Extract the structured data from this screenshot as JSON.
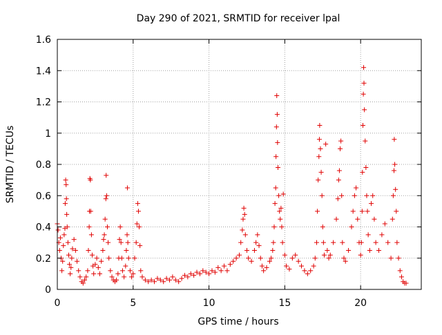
{
  "chart_data": {
    "type": "scatter",
    "title": "Day 290 of 2021, SRMTID for receiver lpal",
    "xlabel": "GPS time / hours",
    "ylabel": "SRMTID / TECUs",
    "xlim": [
      0,
      24
    ],
    "ylim": [
      0,
      1.6
    ],
    "x_ticks": [
      0,
      5,
      10,
      15,
      20
    ],
    "x_tick_labels": [
      "0",
      "5",
      "10",
      "15",
      "20"
    ],
    "y_ticks": [
      0,
      0.2,
      0.4,
      0.6,
      0.8,
      1.0,
      1.2,
      1.4,
      1.6
    ],
    "y_tick_labels": [
      "0",
      "0.2",
      "0.4",
      "0.6",
      "0.8",
      "1",
      "1.2",
      "1.4",
      "1.6"
    ],
    "grid": true,
    "marker": "+",
    "series": [
      {
        "name": "SRMTID",
        "color": "#e00000",
        "points": [
          [
            0.0,
            0.42
          ],
          [
            0.05,
            0.38
          ],
          [
            0.1,
            0.3
          ],
          [
            0.15,
            0.25
          ],
          [
            0.2,
            0.33
          ],
          [
            0.25,
            0.2
          ],
          [
            0.3,
            0.12
          ],
          [
            0.35,
            0.18
          ],
          [
            0.4,
            0.28
          ],
          [
            0.45,
            0.35
          ],
          [
            0.5,
            0.39
          ],
          [
            0.52,
            0.55
          ],
          [
            0.55,
            0.7
          ],
          [
            0.58,
            0.67
          ],
          [
            0.6,
            0.58
          ],
          [
            0.62,
            0.48
          ],
          [
            0.65,
            0.4
          ],
          [
            0.7,
            0.3
          ],
          [
            0.75,
            0.22
          ],
          [
            0.8,
            0.16
          ],
          [
            0.85,
            0.1
          ],
          [
            0.9,
            0.14
          ],
          [
            0.95,
            0.2
          ],
          [
            1.0,
            0.26
          ],
          [
            1.1,
            0.32
          ],
          [
            1.2,
            0.25
          ],
          [
            1.3,
            0.18
          ],
          [
            1.4,
            0.12
          ],
          [
            1.5,
            0.08
          ],
          [
            1.6,
            0.05
          ],
          [
            1.7,
            0.04
          ],
          [
            1.8,
            0.06
          ],
          [
            1.9,
            0.08
          ],
          [
            2.0,
            0.12
          ],
          [
            2.05,
            0.25
          ],
          [
            2.1,
            0.4
          ],
          [
            2.12,
            0.5
          ],
          [
            2.15,
            0.71
          ],
          [
            2.18,
            0.7
          ],
          [
            2.2,
            0.5
          ],
          [
            2.25,
            0.35
          ],
          [
            2.3,
            0.22
          ],
          [
            2.35,
            0.15
          ],
          [
            2.4,
            0.1
          ],
          [
            2.5,
            0.16
          ],
          [
            2.6,
            0.2
          ],
          [
            2.7,
            0.14
          ],
          [
            2.8,
            0.1
          ],
          [
            2.9,
            0.18
          ],
          [
            3.0,
            0.25
          ],
          [
            3.05,
            0.32
          ],
          [
            3.1,
            0.35
          ],
          [
            3.15,
            0.45
          ],
          [
            3.2,
            0.58
          ],
          [
            3.22,
            0.73
          ],
          [
            3.25,
            0.6
          ],
          [
            3.3,
            0.4
          ],
          [
            3.35,
            0.3
          ],
          [
            3.4,
            0.2
          ],
          [
            3.5,
            0.12
          ],
          [
            3.6,
            0.08
          ],
          [
            3.7,
            0.06
          ],
          [
            3.8,
            0.05
          ],
          [
            3.9,
            0.06
          ],
          [
            4.0,
            0.1
          ],
          [
            4.05,
            0.2
          ],
          [
            4.1,
            0.32
          ],
          [
            4.15,
            0.4
          ],
          [
            4.2,
            0.3
          ],
          [
            4.25,
            0.2
          ],
          [
            4.3,
            0.12
          ],
          [
            4.4,
            0.08
          ],
          [
            4.5,
            0.15
          ],
          [
            4.55,
            0.25
          ],
          [
            4.6,
            0.35
          ],
          [
            4.62,
            0.65
          ],
          [
            4.65,
            0.3
          ],
          [
            4.7,
            0.2
          ],
          [
            4.8,
            0.12
          ],
          [
            4.9,
            0.08
          ],
          [
            5.0,
            0.1
          ],
          [
            5.1,
            0.2
          ],
          [
            5.2,
            0.3
          ],
          [
            5.25,
            0.42
          ],
          [
            5.3,
            0.55
          ],
          [
            5.35,
            0.5
          ],
          [
            5.4,
            0.4
          ],
          [
            5.45,
            0.28
          ],
          [
            5.5,
            0.12
          ],
          [
            5.6,
            0.08
          ],
          [
            5.8,
            0.06
          ],
          [
            6.0,
            0.05
          ],
          [
            6.2,
            0.06
          ],
          [
            6.4,
            0.05
          ],
          [
            6.6,
            0.07
          ],
          [
            6.8,
            0.06
          ],
          [
            7.0,
            0.05
          ],
          [
            7.2,
            0.07
          ],
          [
            7.4,
            0.06
          ],
          [
            7.6,
            0.08
          ],
          [
            7.8,
            0.06
          ],
          [
            8.0,
            0.05
          ],
          [
            8.2,
            0.07
          ],
          [
            8.4,
            0.09
          ],
          [
            8.6,
            0.08
          ],
          [
            8.8,
            0.1
          ],
          [
            9.0,
            0.09
          ],
          [
            9.2,
            0.11
          ],
          [
            9.4,
            0.1
          ],
          [
            9.6,
            0.12
          ],
          [
            9.8,
            0.11
          ],
          [
            10.0,
            0.1
          ],
          [
            10.2,
            0.12
          ],
          [
            10.4,
            0.11
          ],
          [
            10.6,
            0.14
          ],
          [
            10.8,
            0.12
          ],
          [
            11.0,
            0.15
          ],
          [
            11.2,
            0.12
          ],
          [
            11.4,
            0.16
          ],
          [
            11.6,
            0.18
          ],
          [
            11.8,
            0.2
          ],
          [
            12.0,
            0.22
          ],
          [
            12.1,
            0.3
          ],
          [
            12.2,
            0.38
          ],
          [
            12.25,
            0.45
          ],
          [
            12.3,
            0.52
          ],
          [
            12.35,
            0.48
          ],
          [
            12.4,
            0.35
          ],
          [
            12.5,
            0.25
          ],
          [
            12.6,
            0.2
          ],
          [
            12.8,
            0.18
          ],
          [
            13.0,
            0.25
          ],
          [
            13.1,
            0.3
          ],
          [
            13.2,
            0.35
          ],
          [
            13.3,
            0.28
          ],
          [
            13.4,
            0.2
          ],
          [
            13.5,
            0.15
          ],
          [
            13.6,
            0.12
          ],
          [
            13.8,
            0.14
          ],
          [
            14.0,
            0.18
          ],
          [
            14.1,
            0.2
          ],
          [
            14.2,
            0.25
          ],
          [
            14.25,
            0.3
          ],
          [
            14.3,
            0.4
          ],
          [
            14.35,
            0.55
          ],
          [
            14.4,
            0.65
          ],
          [
            14.42,
            0.85
          ],
          [
            14.45,
            1.04
          ],
          [
            14.47,
            1.24
          ],
          [
            14.5,
            1.12
          ],
          [
            14.52,
            0.94
          ],
          [
            14.55,
            0.78
          ],
          [
            14.6,
            0.6
          ],
          [
            14.65,
            0.5
          ],
          [
            14.7,
            0.45
          ],
          [
            14.75,
            0.52
          ],
          [
            14.8,
            0.4
          ],
          [
            14.85,
            0.3
          ],
          [
            14.9,
            0.61
          ],
          [
            15.0,
            0.22
          ],
          [
            15.1,
            0.15
          ],
          [
            15.3,
            0.13
          ],
          [
            15.5,
            0.2
          ],
          [
            15.7,
            0.22
          ],
          [
            15.9,
            0.18
          ],
          [
            16.1,
            0.15
          ],
          [
            16.3,
            0.12
          ],
          [
            16.5,
            0.1
          ],
          [
            16.7,
            0.12
          ],
          [
            16.9,
            0.15
          ],
          [
            17.0,
            0.2
          ],
          [
            17.1,
            0.3
          ],
          [
            17.15,
            0.5
          ],
          [
            17.2,
            0.7
          ],
          [
            17.25,
            0.85
          ],
          [
            17.28,
            0.96
          ],
          [
            17.3,
            1.05
          ],
          [
            17.35,
            0.9
          ],
          [
            17.4,
            0.75
          ],
          [
            17.45,
            0.6
          ],
          [
            17.5,
            0.4
          ],
          [
            17.55,
            0.3
          ],
          [
            17.6,
            0.22
          ],
          [
            17.7,
            0.93
          ],
          [
            17.8,
            0.25
          ],
          [
            17.9,
            0.2
          ],
          [
            18.0,
            0.22
          ],
          [
            18.2,
            0.3
          ],
          [
            18.4,
            0.45
          ],
          [
            18.5,
            0.58
          ],
          [
            18.55,
            0.7
          ],
          [
            18.6,
            0.76
          ],
          [
            18.65,
            0.9
          ],
          [
            18.7,
            0.95
          ],
          [
            18.75,
            0.6
          ],
          [
            18.8,
            0.3
          ],
          [
            18.9,
            0.2
          ],
          [
            19.0,
            0.18
          ],
          [
            19.2,
            0.25
          ],
          [
            19.4,
            0.4
          ],
          [
            19.5,
            0.5
          ],
          [
            19.6,
            0.6
          ],
          [
            19.7,
            0.65
          ],
          [
            19.8,
            0.45
          ],
          [
            19.9,
            0.3
          ],
          [
            20.0,
            0.22
          ],
          [
            20.05,
            0.3
          ],
          [
            20.1,
            0.5
          ],
          [
            20.12,
            0.75
          ],
          [
            20.15,
            1.05
          ],
          [
            20.18,
            1.25
          ],
          [
            20.2,
            1.42
          ],
          [
            20.22,
            1.32
          ],
          [
            20.25,
            1.15
          ],
          [
            20.3,
            0.95
          ],
          [
            20.35,
            0.78
          ],
          [
            20.4,
            0.6
          ],
          [
            20.45,
            0.5
          ],
          [
            20.5,
            0.35
          ],
          [
            20.6,
            0.25
          ],
          [
            20.7,
            0.55
          ],
          [
            20.8,
            0.6
          ],
          [
            20.9,
            0.45
          ],
          [
            21.0,
            0.3
          ],
          [
            21.2,
            0.25
          ],
          [
            21.4,
            0.35
          ],
          [
            21.6,
            0.42
          ],
          [
            21.8,
            0.3
          ],
          [
            22.0,
            0.2
          ],
          [
            22.1,
            0.45
          ],
          [
            22.15,
            0.6
          ],
          [
            22.2,
            0.76
          ],
          [
            22.22,
            0.96
          ],
          [
            22.25,
            0.8
          ],
          [
            22.3,
            0.64
          ],
          [
            22.35,
            0.5
          ],
          [
            22.4,
            0.3
          ],
          [
            22.5,
            0.2
          ],
          [
            22.6,
            0.12
          ],
          [
            22.7,
            0.08
          ],
          [
            22.8,
            0.05
          ],
          [
            22.9,
            0.04
          ],
          [
            23.0,
            0.04
          ]
        ]
      }
    ]
  }
}
